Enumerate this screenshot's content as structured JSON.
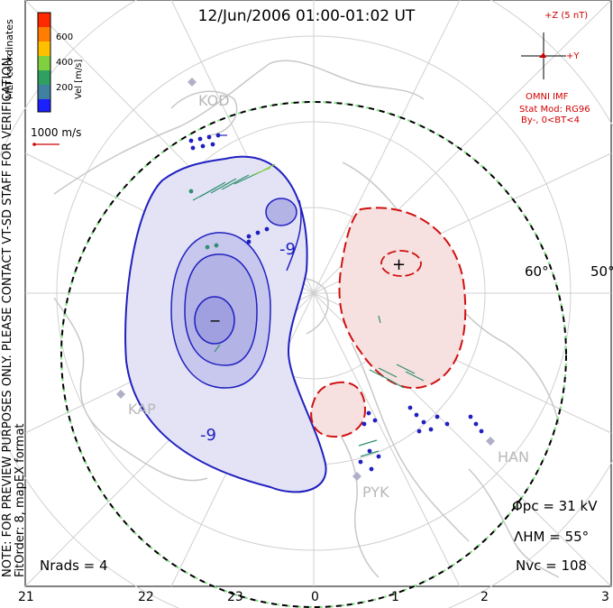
{
  "title": "12/Jun/2006 01:00-01:02 UT",
  "colorbar": {
    "coord_label": "MLT coordinates",
    "unit_label": "Vel [m/s]",
    "ticks": [
      "600",
      "400",
      "200"
    ],
    "colors": [
      "#ff2a00",
      "#ff7d00",
      "#ffc000",
      "#80d040",
      "#30a060",
      "#4080a0",
      "#1a20ff"
    ]
  },
  "scale_vector_label": "1000 m/s",
  "imf": {
    "z_label": "+Z (5 nT)",
    "y_label": "+Y",
    "source": "OMNI IMF",
    "stat_mod": "Stat Mod: RG96",
    "condition": "By-, 0<BT<4"
  },
  "stations": [
    "KOD",
    "KAP",
    "PYK",
    "HAN"
  ],
  "latitude_labels": [
    "60°",
    "50°"
  ],
  "mlt_labels": [
    "21",
    "22",
    "23",
    "0",
    "1",
    "2",
    "3"
  ],
  "contour_labels": [
    "-9",
    "-9"
  ],
  "extrema_markers": {
    "min": "−",
    "max": "+"
  },
  "note": {
    "line1": "NOTE: FOR PREVIEW PURPOSES ONLY. PLEASE CONTACT VT-SD STAFF FOR VERIFICATION.",
    "line2": "FitOrder: 8, mapEX format"
  },
  "stats": {
    "phi_pc": "Φpc = 31 kV",
    "lambda_hm": "ΛHM = 55°",
    "n_vc": "Nvc = 108",
    "n_rads": "Nrads = 4"
  },
  "colors": {
    "negative_cell": "#2020c0",
    "positive_cell": "#d01010",
    "hm_boundary": "#000000",
    "grid": "#d0d0d0",
    "coast": "#c8c8c8"
  }
}
